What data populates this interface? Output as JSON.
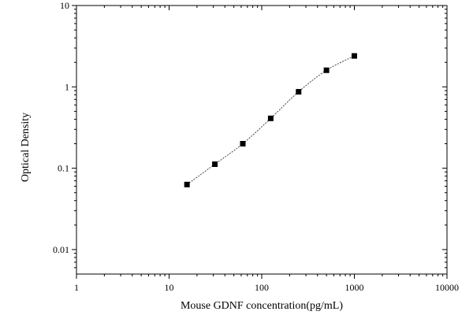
{
  "chart_data": {
    "type": "scatter",
    "title": "",
    "xlabel": "Mouse GDNF concentration(pg/mL)",
    "ylabel": "Optical Density",
    "xscale": "log",
    "yscale": "log",
    "xlim": [
      1,
      10000
    ],
    "ylim": [
      0.005,
      10
    ],
    "x_ticks": [
      1,
      10,
      100,
      1000,
      10000
    ],
    "x_tick_labels": [
      "1",
      "10",
      "100",
      "1000",
      "10000"
    ],
    "y_ticks": [
      0.01,
      0.1,
      1,
      10
    ],
    "y_tick_labels": [
      "0.01",
      "0.1",
      "1",
      "10"
    ],
    "grid": false,
    "legend": "none",
    "marker": "square",
    "marker_color": "#000000",
    "fit_curve": "dotted",
    "series": [
      {
        "x": [
          15.6,
          31.2,
          62.5,
          125,
          250,
          500,
          1000
        ],
        "y": [
          0.063,
          0.112,
          0.2,
          0.41,
          0.87,
          1.6,
          2.4
        ]
      }
    ]
  }
}
